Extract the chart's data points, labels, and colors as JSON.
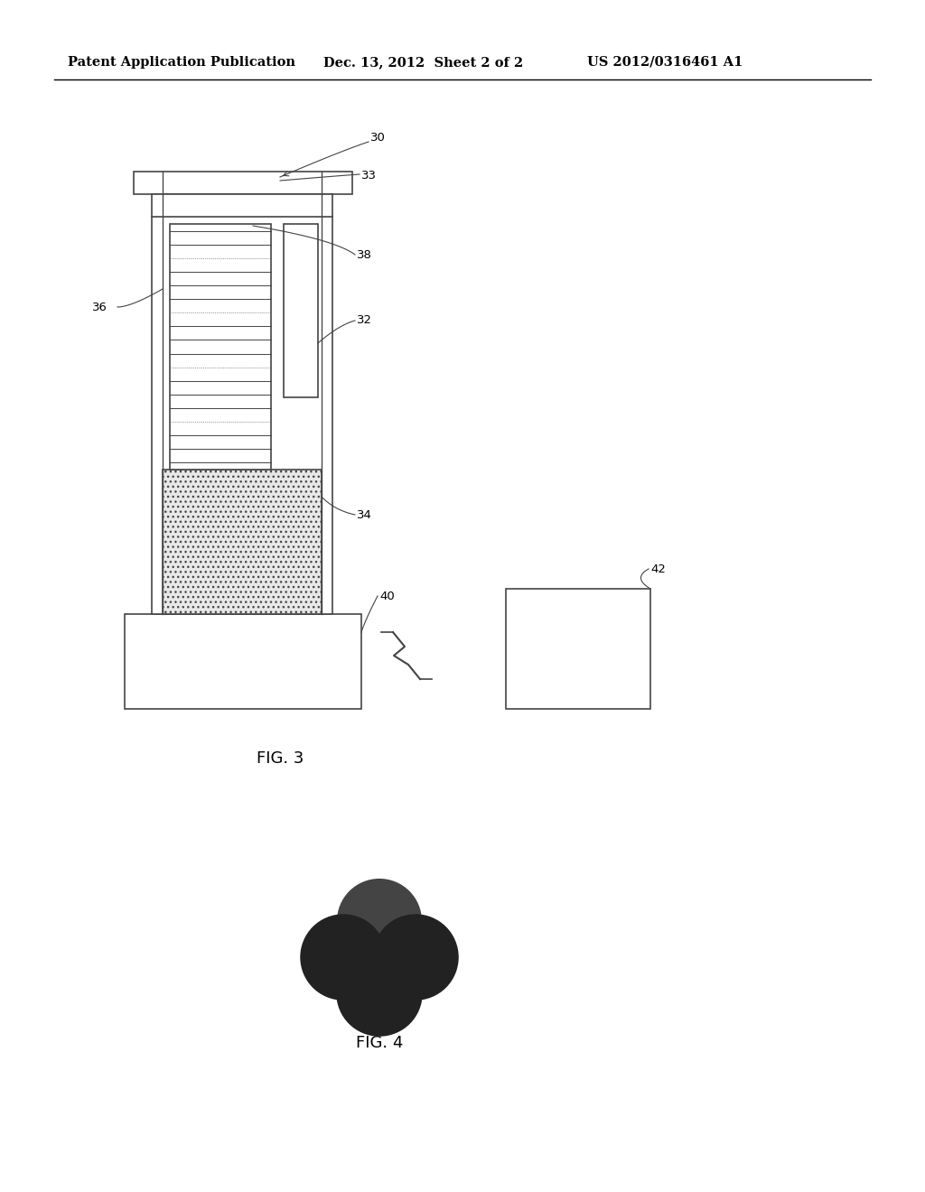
{
  "bg_color": "#ffffff",
  "line_color": "#444444",
  "header_left": "Patent Application Publication",
  "header_mid": "Dec. 13, 2012  Sheet 2 of 2",
  "header_right": "US 2012/0316461 A1",
  "fig3_label": "FIG. 3",
  "fig4_label": "FIG. 4",
  "hatch_fill_color": "#e8e8e8",
  "hatch_pattern": "xxx",
  "coil_line_color": "#555555"
}
